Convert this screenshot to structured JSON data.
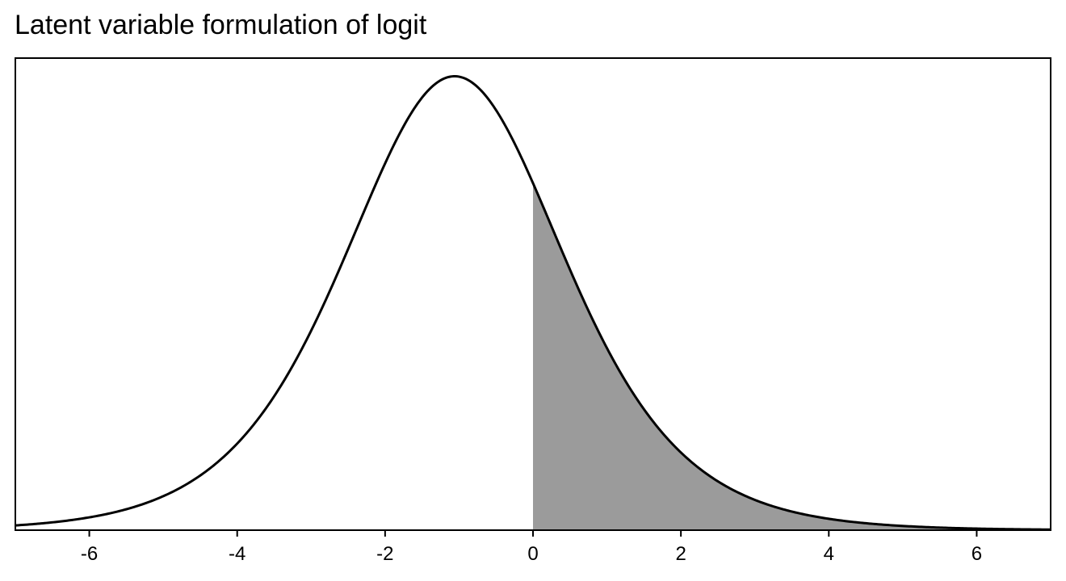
{
  "chart_data": {
    "type": "area",
    "title": "Latent variable formulation of logit",
    "xlabel": "",
    "ylabel": "",
    "xlim": [
      -7,
      7
    ],
    "ylim": [
      0,
      0.26
    ],
    "x_ticks": [
      -6,
      -4,
      -2,
      0,
      2,
      4,
      6
    ],
    "x_tick_labels": [
      "-6",
      "-4",
      "-2",
      "0",
      "2",
      "4",
      "6"
    ],
    "grid": false,
    "legend": "none",
    "series": [
      {
        "distribution": "logistic",
        "location": -1.06,
        "scale": 1,
        "shaded_region": {
          "from": 0,
          "to": 7
        }
      }
    ],
    "colors": {
      "curve": "#000000",
      "shade": "#9b9b9b",
      "frame": "#000000"
    }
  }
}
